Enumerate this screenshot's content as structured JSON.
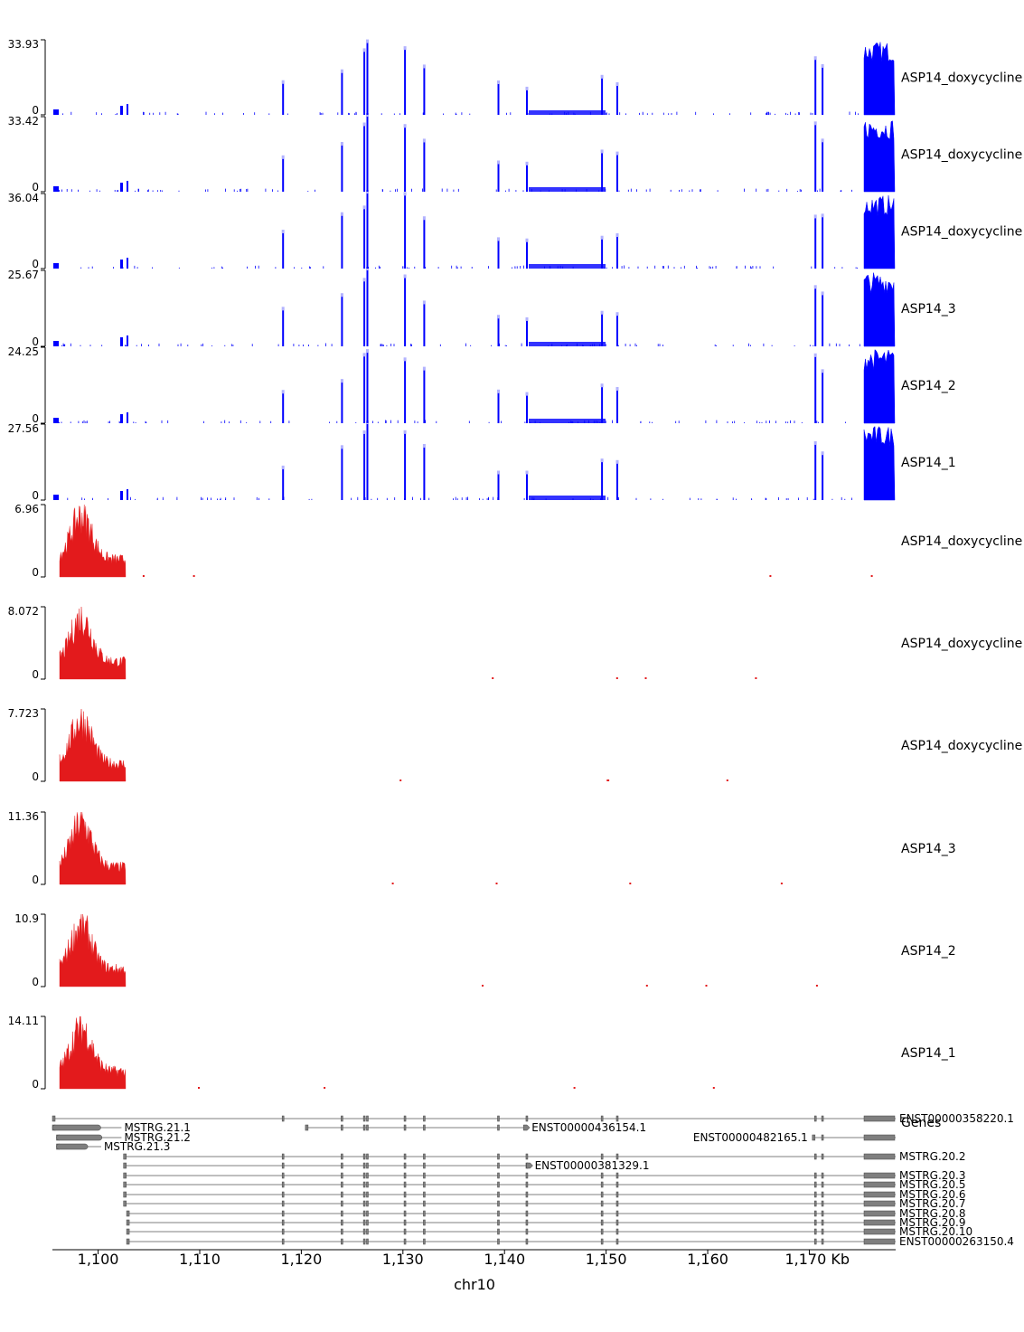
{
  "chart_data": {
    "type": "genome-tracks",
    "region_label": "chr10",
    "x_unit": "Kb",
    "xlim_kb": [
      1095.5,
      1178.5
    ],
    "x_ticks": [
      1100,
      1110,
      1120,
      1130,
      1140,
      1150,
      1160,
      1170
    ],
    "x_tick_labels": [
      "1,100",
      "1,110",
      "1,120",
      "1,130",
      "1,140",
      "1,150",
      "1,160",
      "1,170 Kb"
    ],
    "colors": {
      "rna": "#0000ff",
      "signal": "#e31a1c",
      "gene": "#7f7f7f"
    },
    "blue_exon_peaks_kb": [
      {
        "x": 1118.2,
        "h": 0.42
      },
      {
        "x": 1124.0,
        "h": 0.62
      },
      {
        "x": 1126.2,
        "h": 0.8
      },
      {
        "x": 1126.5,
        "h": 0.95
      },
      {
        "x": 1130.2,
        "h": 0.85
      },
      {
        "x": 1132.1,
        "h": 0.62
      },
      {
        "x": 1139.4,
        "h": 0.38
      },
      {
        "x": 1142.2,
        "h": 0.34
      },
      {
        "x": 1149.6,
        "h": 0.45
      },
      {
        "x": 1151.1,
        "h": 0.45
      },
      {
        "x": 1170.6,
        "h": 0.78
      },
      {
        "x": 1171.3,
        "h": 0.62
      }
    ],
    "tracks": [
      {
        "label": "ASP14_doxycycline",
        "ymax": "33.93",
        "ymin": "0",
        "series": "rna"
      },
      {
        "label": "ASP14_doxycycline",
        "ymax": "33.42",
        "ymin": "0",
        "series": "rna"
      },
      {
        "label": "ASP14_doxycycline",
        "ymax": "36.04",
        "ymin": "0",
        "series": "rna"
      },
      {
        "label": "ASP14_3",
        "ymax": "25.67",
        "ymin": "0",
        "series": "rna"
      },
      {
        "label": "ASP14_2",
        "ymax": "24.25",
        "ymin": "0",
        "series": "rna"
      },
      {
        "label": "ASP14_1",
        "ymax": "27.56",
        "ymin": "0",
        "series": "rna"
      },
      {
        "label": "ASP14_doxycycline",
        "ymax": "6.96",
        "ymin": "0",
        "series": "signal"
      },
      {
        "label": "ASP14_doxycycline",
        "ymax": "8.072",
        "ymin": "0",
        "series": "signal"
      },
      {
        "label": "ASP14_doxycycline",
        "ymax": "7.723",
        "ymin": "0",
        "series": "signal"
      },
      {
        "label": "ASP14_3",
        "ymax": "11.36",
        "ymin": "0",
        "series": "signal"
      },
      {
        "label": "ASP14_2",
        "ymax": "10.9",
        "ymin": "0",
        "series": "signal"
      },
      {
        "label": "ASP14_1",
        "ymax": "14.11",
        "ymin": "0",
        "series": "signal"
      }
    ],
    "genes_track_label": "Genes",
    "transcripts": [
      {
        "name": "ENST00000358220.1",
        "start": 1095.5,
        "end": 1178.5,
        "name_side": "right"
      },
      {
        "name": "ENST00000436154.1",
        "start": 1120.4,
        "end": 1142.4,
        "name_side": "after"
      },
      {
        "name": "MSTRG.21.1",
        "start": 1095.5,
        "end": 1102.3,
        "name_side": "after"
      },
      {
        "name": "MSTRG.21.2",
        "start": 1095.9,
        "end": 1102.3,
        "name_side": "after"
      },
      {
        "name": "ENST00000482165.1",
        "start": 1170.3,
        "end": 1178.5,
        "name_side": "before"
      },
      {
        "name": "MSTRG.21.3",
        "start": 1095.9,
        "end": 1100.3,
        "name_side": "after"
      },
      {
        "name": "MSTRG.20.2",
        "start": 1102.5,
        "end": 1178.5,
        "name_side": "right"
      },
      {
        "name": "ENST00000381329.1",
        "start": 1102.5,
        "end": 1142.7,
        "name_side": "after"
      },
      {
        "name": "MSTRG.20.3",
        "start": 1102.5,
        "end": 1178.5,
        "name_side": "right"
      },
      {
        "name": "MSTRG.20.5",
        "start": 1102.5,
        "end": 1178.5,
        "name_side": "right"
      },
      {
        "name": "MSTRG.20.6",
        "start": 1102.5,
        "end": 1178.5,
        "name_side": "right"
      },
      {
        "name": "MSTRG.20.7",
        "start": 1102.5,
        "end": 1178.5,
        "name_side": "right"
      },
      {
        "name": "MSTRG.20.8",
        "start": 1102.8,
        "end": 1178.5,
        "name_side": "right"
      },
      {
        "name": "MSTRG.20.9",
        "start": 1102.8,
        "end": 1178.5,
        "name_side": "right"
      },
      {
        "name": "MSTRG.20.10",
        "start": 1102.8,
        "end": 1178.5,
        "name_side": "right"
      },
      {
        "name": "ENST00000263150.4",
        "start": 1102.8,
        "end": 1178.5,
        "name_side": "right"
      }
    ]
  }
}
